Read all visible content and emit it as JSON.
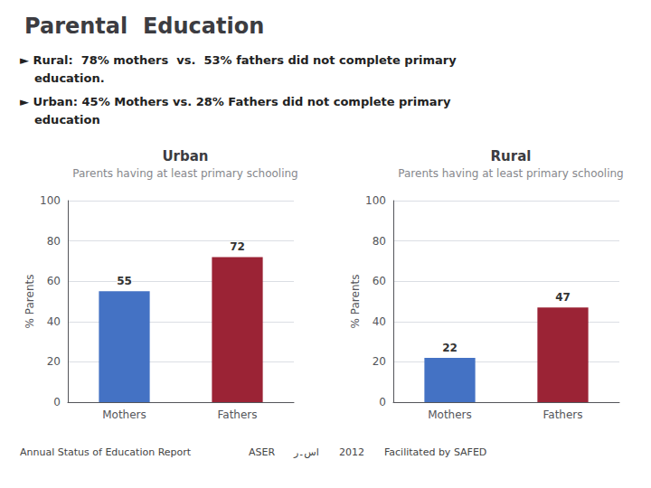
{
  "title": "Parental  Education",
  "annotations": [
    "► Rural:  78% mothers  vs.  53% fathers did not complete primary",
    "education.",
    "► Urban: 45% Mothers vs. 28% Fathers did not complete primary",
    "education",
    "Annual Status of Education Report",
    "ASER",
    "اس۔ر",
    "2012",
    "Facilitated by SAFED"
  ],
  "chart_data": [
    {
      "type": "bar",
      "title": "Urban",
      "subtitle": "Parents having at least primary schooling",
      "ylabel": "% Parents",
      "categories": [
        "Mothers",
        "Fathers"
      ],
      "values": [
        55,
        72
      ],
      "colors": [
        "#4472C4",
        "#9B2335"
      ],
      "ylim": [
        0,
        100
      ],
      "yticks": [
        0,
        20,
        40,
        60,
        80,
        100
      ],
      "grid": true,
      "data_labels": true
    },
    {
      "type": "bar",
      "title": "Rural",
      "subtitle": "Parents having at least primary schooling",
      "ylabel": "% Parents",
      "categories": [
        "Mothers",
        "Fathers"
      ],
      "values": [
        22,
        47
      ],
      "colors": [
        "#4472C4",
        "#9B2335"
      ],
      "ylim": [
        0,
        100
      ],
      "yticks": [
        0,
        20,
        40,
        60,
        80,
        100
      ],
      "grid": true,
      "data_labels": true
    }
  ]
}
